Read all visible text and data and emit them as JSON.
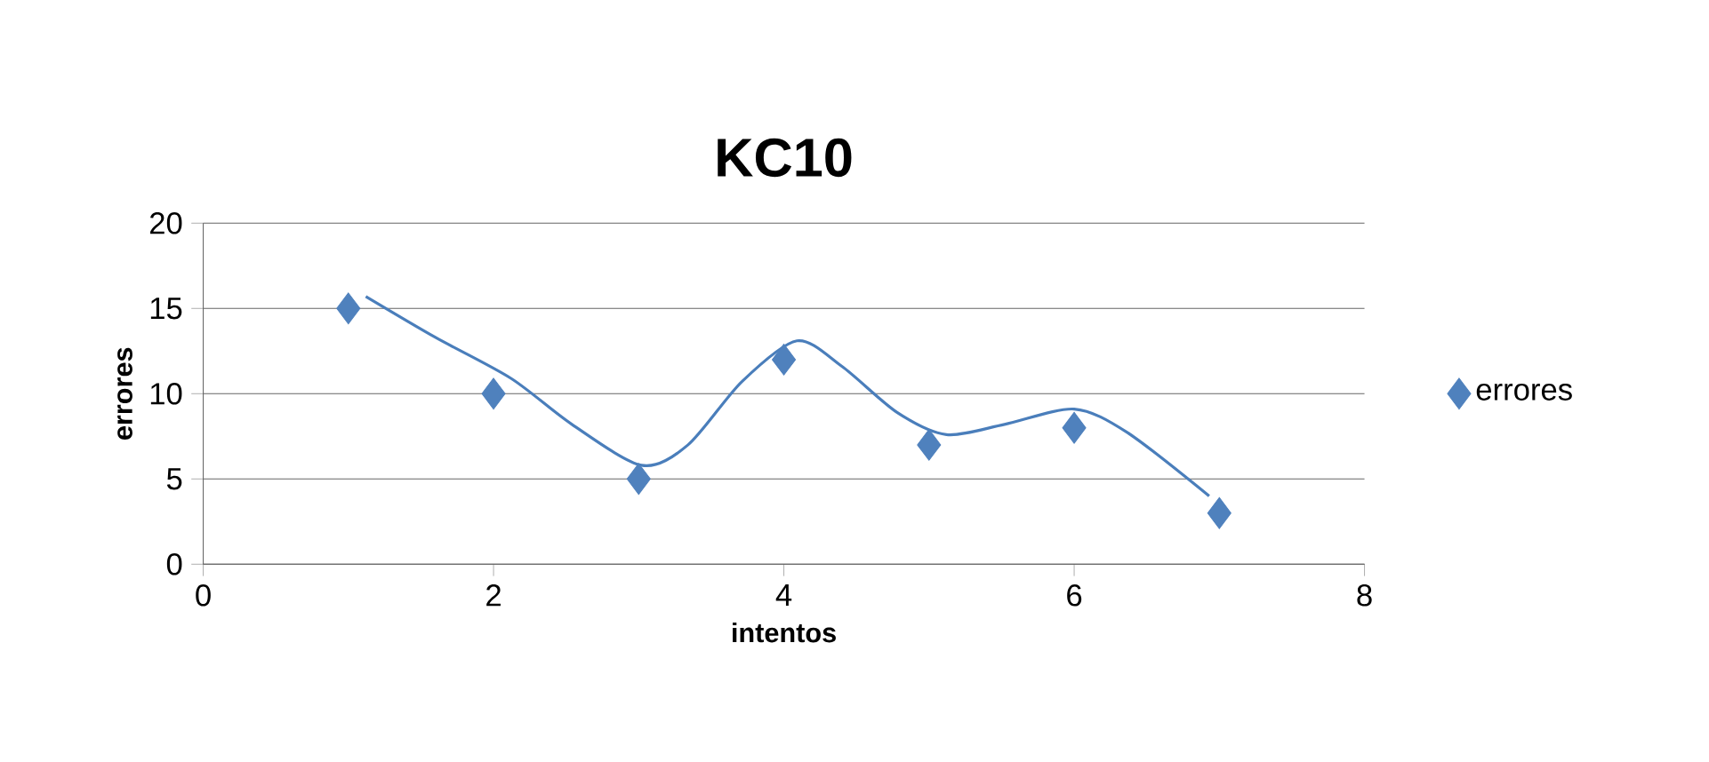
{
  "chart_data": {
    "type": "scatter",
    "title": "KC10",
    "xlabel": "intentos",
    "ylabel": "errores",
    "series": [
      {
        "name": "errores",
        "type": "scatter",
        "color": "#4f81bd",
        "marker": "diamond",
        "x": [
          1,
          2,
          3,
          4,
          5,
          6,
          7
        ],
        "values": [
          15,
          10,
          5,
          12,
          7,
          8,
          3
        ]
      },
      {
        "type": "line",
        "color": "#4a7ebb",
        "line_style": "solid",
        "x": [
          1.12,
          1.6,
          2.12,
          2.54,
          3.02,
          3.34,
          3.71,
          4.09,
          4.4,
          4.78,
          5.12,
          5.52,
          6.0,
          6.37,
          6.93
        ],
        "values": [
          15.7,
          13.3,
          10.9,
          8.2,
          5.8,
          7.0,
          10.7,
          13.1,
          11.6,
          8.9,
          7.6,
          8.2,
          9.1,
          7.7,
          4.0
        ]
      }
    ],
    "xlim": [
      0,
      8
    ],
    "xticks": [
      0,
      2,
      4,
      6,
      8
    ],
    "ylim": [
      0,
      20
    ],
    "yticks": [
      0,
      5,
      10,
      15,
      20
    ],
    "grid": "y",
    "legend": "right"
  }
}
